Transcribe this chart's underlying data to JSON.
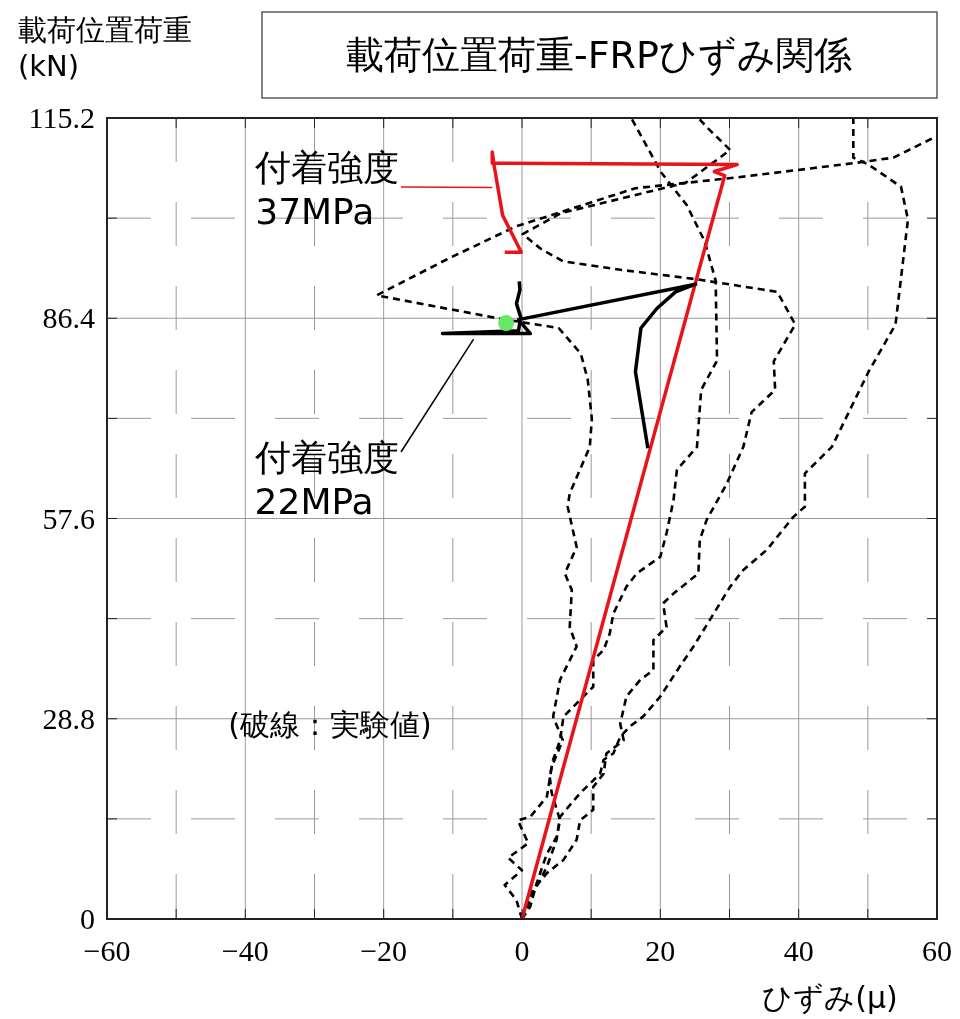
{
  "chart_data": {
    "type": "line",
    "title": "載荷位置荷重-FRPひずみ関係",
    "xlabel": "ひずみ(μ)",
    "ylabel": "載荷位置荷重\n(kN)",
    "xlim": [
      -60,
      60
    ],
    "xticks": [
      -60,
      {
        "value": -50,
        "label": null
      },
      -40,
      {
        "value": -30,
        "label": null
      },
      -20,
      {
        "value": -10,
        "label": null
      },
      0,
      {
        "value": 10,
        "label": null
      },
      20,
      {
        "value": 30,
        "label": null
      },
      40,
      {
        "value": 50,
        "label": null
      },
      60
    ],
    "ylim": [
      0,
      115.2
    ],
    "yticks": [
      0,
      {
        "value": 14.4,
        "label": null
      },
      28.8,
      {
        "value": 43.2,
        "label": null
      },
      57.6,
      {
        "value": 72,
        "label": null
      },
      86.4,
      {
        "value": 100.8,
        "label": null
      },
      115.2
    ],
    "grid": true,
    "series": [
      {
        "color": "#000000",
        "line_style": "dashed",
        "x": [
          0,
          -0.8,
          -2.5,
          0,
          -2,
          0.9,
          -0.6,
          1.2,
          3.6,
          4.3,
          5.9,
          4.5,
          5.5,
          7.9,
          6.9,
          7.2,
          6.2,
          7.9,
          6.6,
          6.9,
          9.8,
          10.1,
          9.5,
          8.5,
          5.3,
          -3,
          -21,
          -10.6,
          -0.9,
          16.4,
          30.6,
          47.9,
          53.7,
          60
        ],
        "values": [
          0,
          2.7,
          4.9,
          7,
          8.8,
          10.9,
          14.2,
          14.7,
          17.6,
          21.9,
          25.7,
          29.1,
          34.4,
          39.2,
          42,
          47.3,
          49.7,
          53.5,
          59.3,
          61.2,
          67.9,
          71.9,
          77.6,
          81.3,
          85,
          86.3,
          89.7,
          95,
          99.6,
          105.1,
          106.6,
          108.7,
          109.5,
          112.6
        ]
      },
      {
        "color": "#000000",
        "line_style": "dashed",
        "x": [
          0,
          1.2,
          2.1,
          3.6,
          5,
          5.5,
          4.3,
          4,
          4.5,
          5.5,
          6,
          8.4,
          10.3,
          10.3,
          11.8,
          12.7,
          13.2,
          15.1,
          16.6,
          20,
          20.9,
          21.9,
          22.4,
          25.3,
          25.9,
          28.2,
          28,
          26.4,
          23.8,
          20.1,
          15.8
        ],
        "values": [
          0,
          1.8,
          5.1,
          9.4,
          11.8,
          14.2,
          18.1,
          20.5,
          22.9,
          25.7,
          29.1,
          31.5,
          33.4,
          37.2,
          38.7,
          41.1,
          43.9,
          47.8,
          49.7,
          52.1,
          55.5,
          60.2,
          64.6,
          67.9,
          76.1,
          80.3,
          91.8,
          97.5,
          102.7,
          107.4,
          115.2
        ]
      },
      {
        "color": "#000000",
        "line_style": "dashed",
        "x": [
          0,
          1.6,
          3.6,
          6,
          7.9,
          8.4,
          10.3,
          10.3,
          11.8,
          12.2,
          14.7,
          14.2,
          15.1,
          17.1,
          19,
          19,
          20.9,
          20.4,
          21.9,
          25.5,
          25.7,
          26.7,
          29.6,
          32,
          33.2,
          36.6,
          36.4,
          39.5,
          36.9,
          25.3,
          14.8,
          5.9,
          2.7,
          0.1,
          5.6,
          23.7,
          30.1,
          26.9,
          25.5
        ],
        "values": [
          0,
          4.2,
          6.6,
          8.5,
          11.4,
          14.2,
          15.7,
          19,
          20.9,
          23.8,
          25.7,
          28.1,
          32,
          34.4,
          35.8,
          40.1,
          42,
          45.4,
          46.8,
          49.7,
          54.5,
          57.4,
          62.6,
          67.9,
          72.9,
          76.1,
          80.2,
          85.5,
          90.2,
          92,
          93.3,
          94.6,
          96.4,
          98.5,
          101.5,
          105.9,
          110.6,
          113.7,
          115.2
        ]
      },
      {
        "color": "#000000",
        "line_style": "dashed",
        "x": [
          0,
          1.6,
          3.6,
          5,
          5.5,
          8.4,
          11.3,
          11.8,
          13.2,
          14.2,
          15.6,
          17.5,
          20,
          22.8,
          24.8,
          27.7,
          30.1,
          32,
          35.4,
          39.2,
          40.9,
          40.9,
          44.8,
          50.1,
          54,
          55.8,
          54.8,
          50.1,
          47.9,
          47.9
        ],
        "values": [
          0,
          3.7,
          7.5,
          11.4,
          14.7,
          18.1,
          20.9,
          22.9,
          23.8,
          26.2,
          27.7,
          29.1,
          32,
          36.3,
          39.2,
          43.9,
          47.8,
          50.2,
          53.1,
          57.8,
          59.3,
          64.1,
          67.9,
          78.7,
          85.5,
          100.6,
          105.3,
          108.5,
          109.5,
          115.2
        ]
      },
      {
        "color": "#e8141c",
        "x": [
          0,
          29.3,
          27.8,
          31.1,
          -4.3,
          -4.3,
          -4,
          -2.8,
          -0.1,
          -2.5
        ],
        "values": [
          0,
          106.9,
          107.5,
          108.5,
          108.7,
          110.3,
          108.2,
          101.2,
          95.9,
          95.9
        ]
      },
      {
        "color": "#000000",
        "x": [
          18.2,
          16.4,
          17.2,
          19.5,
          22.2,
          25.1,
          -0.5,
          1.2,
          -11.5,
          -0.5,
          -0.2,
          -0.8,
          -0.3,
          -0.4
        ],
        "values": [
          67.7,
          78.7,
          85,
          87.8,
          90.2,
          91.3,
          86.2,
          84.2,
          84.2,
          84.6,
          86.6,
          88.5,
          90.5,
          91.7
        ]
      },
      {
        "type": "scatter",
        "marker": "circle",
        "color": "#66e866",
        "x": [
          -2.3
        ],
        "values": [
          85.7
        ]
      }
    ],
    "annotations": [
      {
        "text": "付着強度\n37MPa",
        "x": -4.3,
        "y": 105.2
      },
      {
        "text": "付着強度\n22MPa",
        "x": -7,
        "y": 83.4
      },
      "(破線：実験値)"
    ]
  }
}
